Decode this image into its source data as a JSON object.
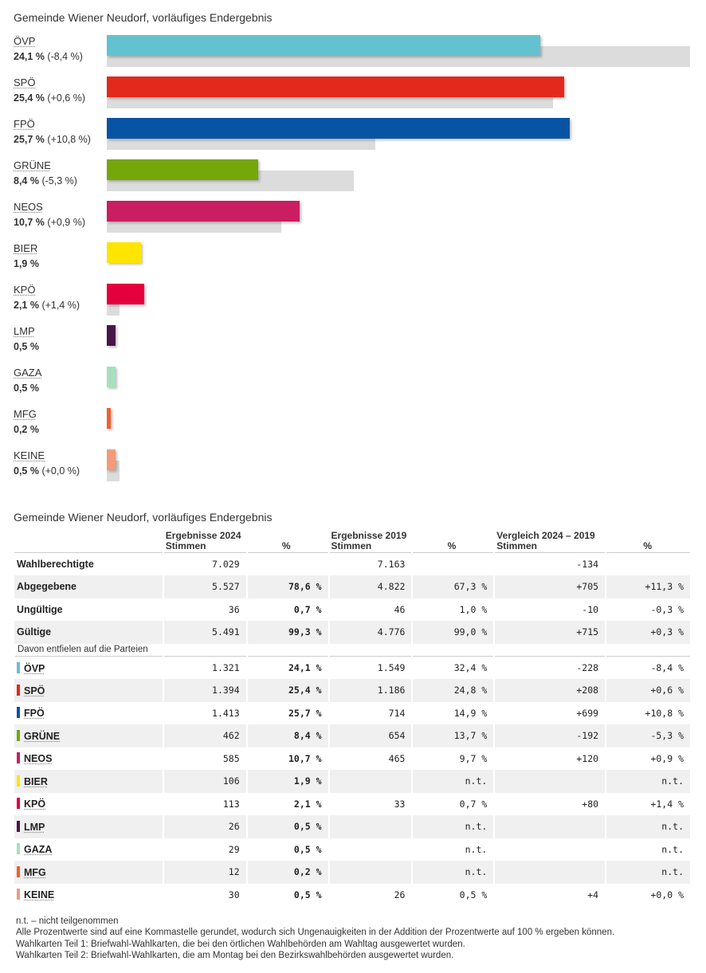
{
  "chart_title": "Gemeinde Wiener Neudorf, vorläufiges Endergebnis",
  "chart_data": {
    "type": "bar",
    "title": "Gemeinde Wiener Neudorf, vorläufiges Endergebnis",
    "categories": [
      "ÖVP",
      "SPÖ",
      "FPÖ",
      "GRÜNE",
      "NEOS",
      "BIER",
      "KPÖ",
      "LMP",
      "GAZA",
      "MFG",
      "KEINE"
    ],
    "series": [
      {
        "values": [
          24.1,
          25.4,
          25.7,
          8.4,
          10.7,
          1.9,
          2.1,
          0.5,
          0.5,
          0.2,
          0.5
        ]
      },
      {
        "values": [
          32.4,
          24.8,
          14.9,
          13.7,
          9.7,
          null,
          0.7,
          null,
          null,
          null,
          0.5
        ]
      }
    ],
    "colors": [
      "#63c2d0",
      "#e3291b",
      "#0854a4",
      "#75a70b",
      "#cb1d62",
      "#ffe500",
      "#e4003c",
      "#4a1548",
      "#a9dfbf",
      "#f06030",
      "#f39a7b"
    ],
    "labels": [
      {
        "party": "ÖVP",
        "value": "24,1 %",
        "diff": "(-8,4 %)"
      },
      {
        "party": "SPÖ",
        "value": "25,4 %",
        "diff": "(+0,6 %)"
      },
      {
        "party": "FPÖ",
        "value": "25,7 %",
        "diff": "(+10,8 %)"
      },
      {
        "party": "GRÜNE",
        "value": "8,4 %",
        "diff": "(-5,3 %)"
      },
      {
        "party": "NEOS",
        "value": "10,7 %",
        "diff": "(+0,9 %)"
      },
      {
        "party": "BIER",
        "value": "1,9 %",
        "diff": ""
      },
      {
        "party": "KPÖ",
        "value": "2,1 %",
        "diff": "(+1,4 %)"
      },
      {
        "party": "LMP",
        "value": "0,5 %",
        "diff": ""
      },
      {
        "party": "GAZA",
        "value": "0,5 %",
        "diff": ""
      },
      {
        "party": "MFG",
        "value": "0,2 %",
        "diff": ""
      },
      {
        "party": "KEINE",
        "value": "0,5 %",
        "diff": "(+0,0 %)"
      }
    ]
  },
  "table": {
    "title": "Gemeinde Wiener Neudorf, vorläufiges Endergebnis",
    "header": {
      "g1": "Ergebnisse 2024",
      "g2": "Ergebnisse 2019",
      "g3": "Vergleich 2024 – 2019",
      "stimmen": "Stimmen",
      "pct": "%"
    },
    "summary_rows": [
      [
        "Wahlberechtigte",
        "7.029",
        "",
        "7.163",
        "",
        "-134",
        ""
      ],
      [
        "Abgegebene",
        "5.527",
        "78,6 %",
        "4.822",
        "67,3 %",
        "+705",
        "+11,3 %"
      ],
      [
        "Ungültige",
        "36",
        "0,7 %",
        "46",
        "1,0 %",
        "-10",
        "-0,3 %"
      ],
      [
        "Gültige",
        "5.491",
        "99,3 %",
        "4.776",
        "99,0 %",
        "+715",
        "+0,3 %"
      ]
    ],
    "subheader": "Davon entfielen auf die Parteien",
    "party_rows": [
      [
        "ÖVP",
        "1.321",
        "24,1 %",
        "1.549",
        "32,4 %",
        "-228",
        "-8,4 %"
      ],
      [
        "SPÖ",
        "1.394",
        "25,4 %",
        "1.186",
        "24,8 %",
        "+208",
        "+0,6 %"
      ],
      [
        "FPÖ",
        "1.413",
        "25,7 %",
        "714",
        "14,9 %",
        "+699",
        "+10,8 %"
      ],
      [
        "GRÜNE",
        "462",
        "8,4 %",
        "654",
        "13,7 %",
        "-192",
        "-5,3 %"
      ],
      [
        "NEOS",
        "585",
        "10,7 %",
        "465",
        "9,7 %",
        "+120",
        "+0,9 %"
      ],
      [
        "BIER",
        "106",
        "1,9 %",
        "",
        "n.t.",
        "",
        "n.t."
      ],
      [
        "KPÖ",
        "113",
        "2,1 %",
        "33",
        "0,7 %",
        "+80",
        "+1,4 %"
      ],
      [
        "LMP",
        "26",
        "0,5 %",
        "",
        "n.t.",
        "",
        "n.t."
      ],
      [
        "GAZA",
        "29",
        "0,5 %",
        "",
        "n.t.",
        "",
        "n.t."
      ],
      [
        "MFG",
        "12",
        "0,2 %",
        "",
        "n.t.",
        "",
        "n.t."
      ],
      [
        "KEINE",
        "30",
        "0,5 %",
        "26",
        "0,5 %",
        "+4",
        "+0,0 %"
      ]
    ]
  },
  "footnotes": [
    "n.t. – nicht teilgenommen",
    "Alle Prozentwerte sind auf eine Kommastelle gerundet, wodurch sich Ungenauigkeiten in der Addition der Prozentwerte auf 100 % ergeben können.",
    "Wahlkarten Teil 1: Briefwahl-Wahlkarten, die bei den örtlichen Wahlbehörden am Wahltag ausgewertet wurden.",
    "Wahlkarten Teil 2: Briefwahl-Wahlkarten, die am Montag bei den Bezirkswahlbehörden ausgewertet wurden."
  ]
}
